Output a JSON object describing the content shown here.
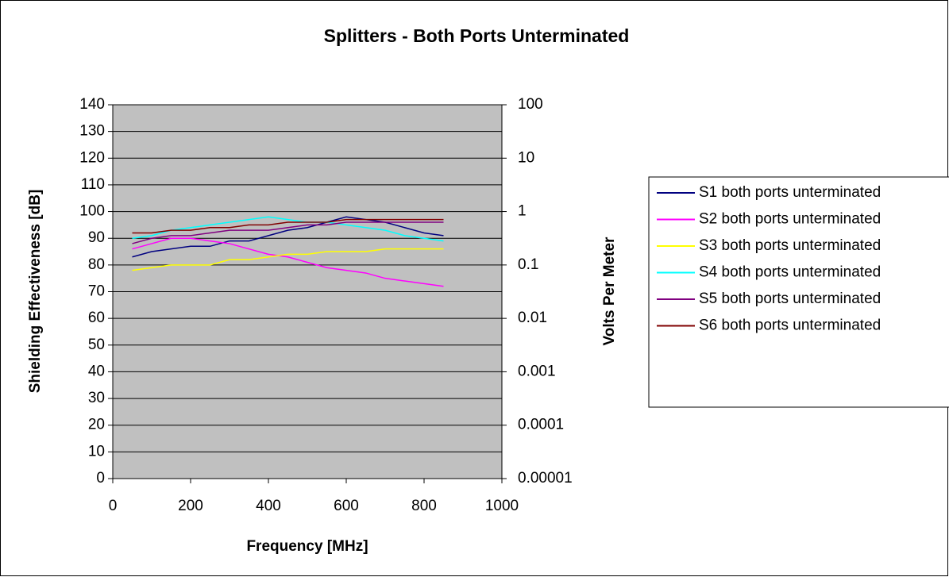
{
  "chart_data": {
    "type": "line",
    "title": "Splitters - Both Ports Unterminated",
    "x_label": "Frequency [MHz]",
    "y_label": "Shielding Effectiveness [dB]",
    "y2_label": "Volts Per Meter",
    "x": [
      50,
      100,
      150,
      200,
      250,
      300,
      350,
      400,
      450,
      500,
      550,
      600,
      650,
      700,
      750,
      800,
      850
    ],
    "series": [
      {
        "name": "S1 both ports unterminated",
        "color": "#000080",
        "values": [
          83,
          85,
          86,
          87,
          87,
          89,
          89,
          91,
          93,
          94,
          96,
          98,
          97,
          96,
          94,
          92,
          91
        ]
      },
      {
        "name": "S2 both ports unterminated",
        "color": "#ff00ff",
        "values": [
          86,
          88,
          90,
          90,
          89,
          88,
          86,
          84,
          83,
          81,
          79,
          78,
          77,
          75,
          74,
          73,
          72
        ]
      },
      {
        "name": "S3 both ports unterminated",
        "color": "#ffff00",
        "values": [
          78,
          79,
          80,
          80,
          80,
          82,
          82,
          83,
          84,
          84,
          85,
          85,
          85,
          86,
          86,
          86,
          86
        ]
      },
      {
        "name": "S4 both ports unterminated",
        "color": "#00ffff",
        "values": [
          90,
          91,
          93,
          94,
          95,
          96,
          97,
          98,
          97,
          96,
          96,
          95,
          94,
          93,
          91,
          90,
          89
        ]
      },
      {
        "name": "S5 both ports unterminated",
        "color": "#800080",
        "values": [
          88,
          90,
          91,
          91,
          92,
          93,
          93,
          93,
          94,
          95,
          95,
          96,
          96,
          96,
          96,
          96,
          96
        ]
      },
      {
        "name": "S6 both ports unterminated",
        "color": "#800000",
        "values": [
          92,
          92,
          93,
          93,
          94,
          94,
          95,
          95,
          96,
          96,
          96,
          97,
          97,
          97,
          97,
          97,
          97
        ]
      }
    ],
    "xlim": [
      0,
      1000
    ],
    "xticks": [
      0,
      200,
      400,
      600,
      800,
      1000
    ],
    "ylim": [
      0,
      140
    ],
    "yticks": [
      0,
      10,
      20,
      30,
      40,
      50,
      60,
      70,
      80,
      90,
      100,
      110,
      120,
      130,
      140
    ],
    "y2lim": [
      1e-05,
      100
    ],
    "y2ticks": [
      1e-05,
      0.0001,
      0.001,
      0.01,
      0.1,
      1,
      10,
      100
    ],
    "y2_log": true,
    "grid": true,
    "legend": "right",
    "plot_background": "#c0c0c0"
  }
}
